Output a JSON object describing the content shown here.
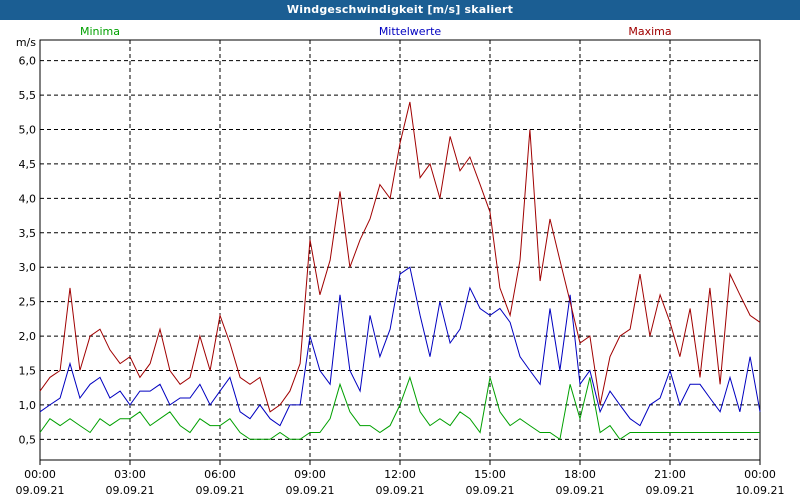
{
  "window": {
    "title": "Windgeschwindigkeit [m/s] skaliert"
  },
  "colors": {
    "title_bar": "#1b5e93",
    "minima": "#00a000",
    "mittelwerte": "#0000c0",
    "maxima": "#a00000",
    "grid": "#000000"
  },
  "chart_data": {
    "type": "line",
    "ylabel": "m/s",
    "ylim": [
      0.2,
      6.3
    ],
    "xlim": [
      0,
      24
    ],
    "grid": true,
    "legend_placement": "top",
    "yticks": [
      "0,5",
      "1,0",
      "1,5",
      "2,0",
      "2,5",
      "3,0",
      "3,5",
      "4,0",
      "4,5",
      "5,0",
      "5,5",
      "6,0"
    ],
    "ytick_values": [
      0.5,
      1.0,
      1.5,
      2.0,
      2.5,
      3.0,
      3.5,
      4.0,
      4.5,
      5.0,
      5.5,
      6.0
    ],
    "xticks": [
      {
        "time": "00:00",
        "date": "09.09.21"
      },
      {
        "time": "03:00",
        "date": "09.09.21"
      },
      {
        "time": "06:00",
        "date": "09.09.21"
      },
      {
        "time": "09:00",
        "date": "09.09.21"
      },
      {
        "time": "12:00",
        "date": "09.09.21"
      },
      {
        "time": "15:00",
        "date": "09.09.21"
      },
      {
        "time": "18:00",
        "date": "09.09.21"
      },
      {
        "time": "21:00",
        "date": "09.09.21"
      },
      {
        "time": "00:00",
        "date": "10.09.21"
      }
    ],
    "xtick_hours": [
      0,
      3,
      6,
      9,
      12,
      15,
      18,
      21,
      24
    ],
    "series": [
      {
        "name": "Minima",
        "color": "#00a000",
        "x": [
          0,
          0.33,
          0.67,
          1,
          1.33,
          1.67,
          2,
          2.33,
          2.67,
          3,
          3.33,
          3.67,
          4,
          4.33,
          4.67,
          5,
          5.33,
          5.67,
          6,
          6.33,
          6.67,
          7,
          7.33,
          7.67,
          8,
          8.33,
          8.67,
          9,
          9.33,
          9.67,
          10,
          10.33,
          10.67,
          11,
          11.33,
          11.67,
          12,
          12.33,
          12.67,
          13,
          13.33,
          13.67,
          14,
          14.33,
          14.67,
          15,
          15.33,
          15.67,
          16,
          16.33,
          16.67,
          17,
          17.33,
          17.67,
          18,
          18.33,
          18.67,
          19,
          19.33,
          19.67,
          20,
          20.33,
          20.67,
          21,
          21.33,
          21.67,
          22,
          22.33,
          22.67,
          23,
          23.33,
          23.67,
          24
        ],
        "values": [
          0.6,
          0.8,
          0.7,
          0.8,
          0.7,
          0.6,
          0.8,
          0.7,
          0.8,
          0.8,
          0.9,
          0.7,
          0.8,
          0.9,
          0.7,
          0.6,
          0.8,
          0.7,
          0.7,
          0.8,
          0.6,
          0.5,
          0.5,
          0.5,
          0.6,
          0.5,
          0.5,
          0.6,
          0.6,
          0.8,
          1.3,
          0.9,
          0.7,
          0.7,
          0.6,
          0.7,
          1.0,
          1.4,
          0.9,
          0.7,
          0.8,
          0.7,
          0.9,
          0.8,
          0.6,
          1.4,
          0.9,
          0.7,
          0.8,
          0.7,
          0.6,
          0.6,
          0.5,
          1.3,
          0.8,
          1.4,
          0.6,
          0.7,
          0.5,
          0.6,
          0.6,
          0.6,
          0.6,
          0.6,
          0.6,
          0.6,
          0.6,
          0.6,
          0.6,
          0.6,
          0.6,
          0.6,
          0.6
        ]
      },
      {
        "name": "Mittelwerte",
        "color": "#0000c0",
        "x": [
          0,
          0.33,
          0.67,
          1,
          1.33,
          1.67,
          2,
          2.33,
          2.67,
          3,
          3.33,
          3.67,
          4,
          4.33,
          4.67,
          5,
          5.33,
          5.67,
          6,
          6.33,
          6.67,
          7,
          7.33,
          7.67,
          8,
          8.33,
          8.67,
          9,
          9.33,
          9.67,
          10,
          10.33,
          10.67,
          11,
          11.33,
          11.67,
          12,
          12.33,
          12.67,
          13,
          13.33,
          13.67,
          14,
          14.33,
          14.67,
          15,
          15.33,
          15.67,
          16,
          16.33,
          16.67,
          17,
          17.33,
          17.67,
          18,
          18.33,
          18.67,
          19,
          19.33,
          19.67,
          20,
          20.33,
          20.67,
          21,
          21.33,
          21.67,
          22,
          22.33,
          22.67,
          23,
          23.33,
          23.67,
          24
        ],
        "values": [
          0.9,
          1.0,
          1.1,
          1.6,
          1.1,
          1.3,
          1.4,
          1.1,
          1.2,
          1.0,
          1.2,
          1.2,
          1.3,
          1.0,
          1.1,
          1.1,
          1.3,
          1.0,
          1.2,
          1.4,
          0.9,
          0.8,
          1.0,
          0.8,
          0.7,
          1.0,
          1.0,
          2.0,
          1.5,
          1.3,
          2.6,
          1.5,
          1.2,
          2.3,
          1.7,
          2.1,
          2.9,
          3.0,
          2.3,
          1.7,
          2.5,
          1.9,
          2.1,
          2.7,
          2.4,
          2.3,
          2.4,
          2.2,
          1.7,
          1.5,
          1.3,
          2.4,
          1.5,
          2.6,
          1.3,
          1.5,
          0.9,
          1.2,
          1.0,
          0.8,
          0.7,
          1.0,
          1.1,
          1.5,
          1.0,
          1.3,
          1.3,
          1.1,
          0.9,
          1.4,
          0.9,
          1.7,
          0.9
        ]
      },
      {
        "name": "Maxima",
        "color": "#a00000",
        "x": [
          0,
          0.33,
          0.67,
          1,
          1.33,
          1.67,
          2,
          2.33,
          2.67,
          3,
          3.33,
          3.67,
          4,
          4.33,
          4.67,
          5,
          5.33,
          5.67,
          6,
          6.33,
          6.67,
          7,
          7.33,
          7.67,
          8,
          8.33,
          8.67,
          9,
          9.33,
          9.67,
          10,
          10.33,
          10.67,
          11,
          11.33,
          11.67,
          12,
          12.33,
          12.67,
          13,
          13.33,
          13.67,
          14,
          14.33,
          14.67,
          15,
          15.33,
          15.67,
          16,
          16.33,
          16.67,
          17,
          17.33,
          17.67,
          18,
          18.33,
          18.67,
          19,
          19.33,
          19.67,
          20,
          20.33,
          20.67,
          21,
          21.33,
          21.67,
          22,
          22.33,
          22.67,
          23,
          23.33,
          23.67,
          24
        ],
        "values": [
          1.2,
          1.4,
          1.5,
          2.7,
          1.5,
          2.0,
          2.1,
          1.8,
          1.6,
          1.7,
          1.4,
          1.6,
          2.1,
          1.5,
          1.3,
          1.4,
          2.0,
          1.5,
          2.3,
          1.9,
          1.4,
          1.3,
          1.4,
          0.9,
          1.0,
          1.2,
          1.6,
          3.4,
          2.6,
          3.1,
          4.1,
          3.0,
          3.4,
          3.7,
          4.2,
          4.0,
          4.8,
          5.4,
          4.3,
          4.5,
          4.0,
          4.9,
          4.4,
          4.6,
          4.2,
          3.8,
          2.7,
          2.3,
          3.1,
          5.0,
          2.8,
          3.7,
          3.1,
          2.5,
          1.9,
          2.0,
          1.0,
          1.7,
          2.0,
          2.1,
          2.9,
          2.0,
          2.6,
          2.2,
          1.7,
          2.4,
          1.4,
          2.7,
          1.3,
          2.9,
          2.6,
          2.3,
          2.2
        ]
      }
    ]
  }
}
